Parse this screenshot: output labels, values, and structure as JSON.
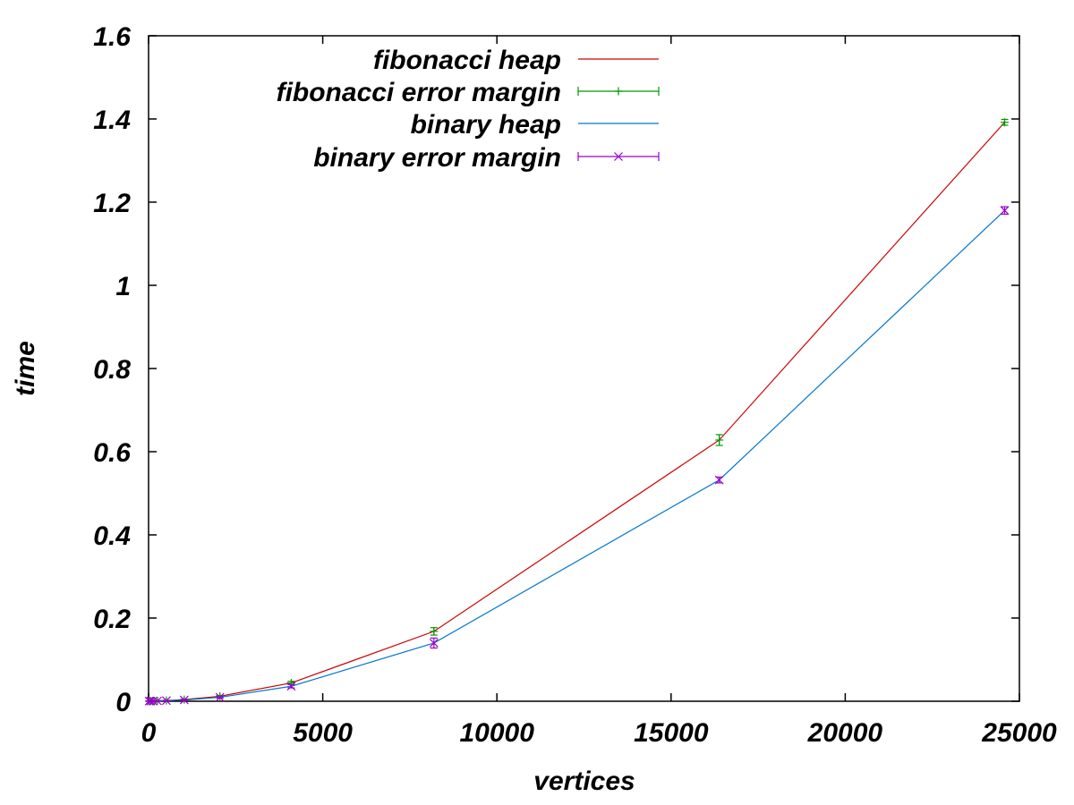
{
  "chart_data": {
    "type": "line",
    "xlabel": "vertices",
    "ylabel": "time",
    "xlim": [
      0,
      25000
    ],
    "ylim": [
      0,
      1.6
    ],
    "x_ticks": [
      0,
      5000,
      10000,
      15000,
      20000,
      25000
    ],
    "y_ticks": [
      0,
      0.2,
      0.4,
      0.6,
      0.8,
      1,
      1.2,
      1.4,
      1.6
    ],
    "x_tick_labels": [
      "0",
      "5000",
      "10000",
      "15000",
      "20000",
      "25000"
    ],
    "y_tick_labels": [
      "0",
      "0.2",
      "0.4",
      "0.6",
      "0.8",
      "1",
      "1.2",
      "1.4",
      "1.6"
    ],
    "grid": false,
    "legend_position": "top-left",
    "x": [
      16,
      64,
      128,
      256,
      512,
      1024,
      2048,
      4096,
      8192,
      16384,
      24576
    ],
    "series": [
      {
        "name": "fibonacci heap",
        "kind": "line",
        "color": "#cc0000",
        "values": [
          0.0003,
          0.0004,
          0.0006,
          0.001,
          0.0018,
          0.004,
          0.012,
          0.044,
          0.168,
          0.628,
          1.392
        ]
      },
      {
        "name": "fibonacci error margin",
        "kind": "errorbars",
        "marker": "plus",
        "color": "#009900",
        "values": [
          0.0003,
          0.0004,
          0.0006,
          0.001,
          0.0018,
          0.004,
          0.012,
          0.044,
          0.168,
          0.628,
          1.392
        ],
        "errors": [
          0.0005,
          0.0005,
          0.0005,
          0.0005,
          0.0005,
          0.001,
          0.002,
          0.004,
          0.009,
          0.013,
          0.007
        ]
      },
      {
        "name": "binary heap",
        "kind": "line",
        "color": "#0077cc",
        "values": [
          0.0003,
          0.0003,
          0.0005,
          0.0008,
          0.0015,
          0.003,
          0.0095,
          0.036,
          0.14,
          0.532,
          1.18
        ]
      },
      {
        "name": "binary error margin",
        "kind": "errorbars",
        "marker": "cross",
        "color": "#9900cc",
        "values": [
          0.0003,
          0.0003,
          0.0005,
          0.0008,
          0.0015,
          0.003,
          0.0095,
          0.036,
          0.14,
          0.532,
          1.18
        ],
        "errors": [
          0.0005,
          0.0005,
          0.0005,
          0.0005,
          0.0005,
          0.001,
          0.002,
          0.004,
          0.012,
          0.007,
          0.009
        ]
      }
    ]
  }
}
